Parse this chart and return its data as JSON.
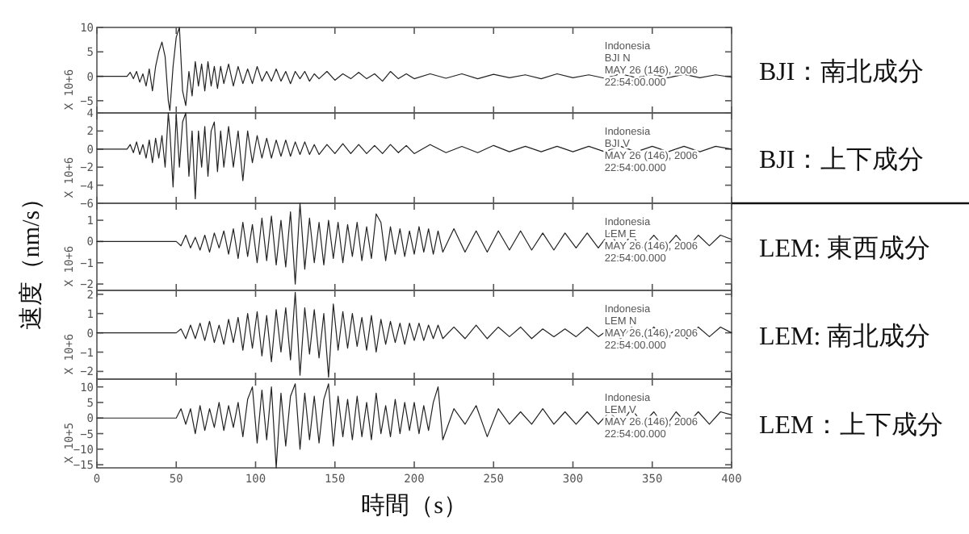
{
  "chart_data": [
    {
      "type": "line",
      "annotations": [
        "X 10+6",
        "Indonesia",
        "BJI   N",
        "MAY 26 (146), 2006",
        "22:54:00.000"
      ],
      "xlim": [
        0,
        400
      ],
      "xticks": [
        0,
        50,
        100,
        150,
        200,
        250,
        300,
        350,
        400
      ],
      "ylim": [
        -7.5,
        10
      ],
      "yticks": [
        -5,
        0,
        5,
        10
      ],
      "tick_labels": "y",
      "grid": false,
      "series": [
        {
          "name": "BJI：南北成分",
          "color": "#222222",
          "x": [
            0,
            19,
            21,
            23,
            25,
            27,
            29,
            31,
            33,
            35,
            37,
            39,
            41,
            43,
            45,
            46,
            48,
            50,
            52,
            54,
            56,
            58,
            60,
            62,
            64,
            66,
            68,
            70,
            72,
            74,
            76,
            78,
            80,
            83,
            86,
            89,
            92,
            95,
            98,
            101,
            104,
            107,
            110,
            113,
            116,
            119,
            122,
            125,
            128,
            131,
            134,
            137,
            140,
            145,
            150,
            155,
            160,
            165,
            170,
            175,
            180,
            185,
            190,
            195,
            200,
            210,
            220,
            230,
            240,
            250,
            260,
            270,
            280,
            290,
            300,
            310,
            320,
            330,
            340,
            350,
            360,
            370,
            380,
            390,
            400
          ],
          "values": [
            0,
            0,
            0.8,
            -0.5,
            1,
            -1.2,
            0.5,
            -2,
            1.5,
            -3,
            2,
            5,
            7,
            4,
            -5,
            -7,
            2,
            8,
            10,
            -3,
            -6,
            1,
            -4,
            3,
            -2,
            2.5,
            -3,
            3,
            -2,
            2,
            -2.5,
            2,
            -1.5,
            2.5,
            -2,
            2,
            -1.5,
            1.5,
            -1.5,
            2,
            -1,
            1,
            -1,
            1.5,
            -1,
            1,
            -1.5,
            1,
            -0.5,
            1,
            -1,
            0.5,
            -0.5,
            1,
            -0.8,
            0.5,
            -0.5,
            0.8,
            -0.5,
            0.5,
            -1,
            1,
            -0.5,
            0.5,
            -0.5,
            0.5,
            -0.4,
            0.5,
            -0.5,
            0.4,
            -0.3,
            0.3,
            -0.5,
            0.5,
            -0.3,
            0.3,
            -0.4,
            0.5,
            -0.3,
            0.4,
            -0.3,
            0.4,
            -0.3,
            0.3,
            -0.2
          ]
        }
      ]
    },
    {
      "type": "line",
      "annotations": [
        "X 10+6",
        "Indonesia",
        "BJI   V",
        "MAY 26 (146), 2006",
        "22:54:00.000"
      ],
      "xlim": [
        0,
        400
      ],
      "xticks": [
        0,
        50,
        100,
        150,
        200,
        250,
        300,
        350,
        400
      ],
      "ylim": [
        -6,
        4
      ],
      "yticks": [
        -6,
        -4,
        -2,
        0,
        2,
        4
      ],
      "tick_labels": "y",
      "grid": false,
      "series": [
        {
          "name": "BJI：上下成分",
          "color": "#222222",
          "x": [
            0,
            19,
            21,
            23,
            25,
            27,
            29,
            31,
            33,
            35,
            37,
            39,
            41,
            43,
            45,
            46,
            48,
            50,
            52,
            54,
            56,
            58,
            60,
            62,
            64,
            66,
            68,
            70,
            72,
            74,
            76,
            78,
            80,
            83,
            86,
            89,
            92,
            95,
            98,
            101,
            104,
            107,
            110,
            113,
            116,
            119,
            122,
            125,
            128,
            131,
            134,
            137,
            140,
            145,
            150,
            155,
            160,
            165,
            170,
            175,
            180,
            185,
            190,
            195,
            200,
            210,
            220,
            230,
            240,
            250,
            260,
            270,
            280,
            290,
            300,
            310,
            320,
            330,
            340,
            350,
            360,
            370,
            380,
            390,
            400
          ],
          "values": [
            0,
            0,
            0.5,
            -0.4,
            0.8,
            -0.6,
            0.5,
            -1,
            1,
            -1.5,
            1.2,
            -1,
            1.5,
            -2,
            4,
            2,
            -4.2,
            3.8,
            -2,
            3,
            4,
            -3,
            2,
            -5.5,
            2,
            -2,
            2.5,
            -3,
            2,
            3,
            -2.5,
            2,
            -2,
            2.5,
            -2,
            2,
            -3.5,
            2,
            -1.5,
            1.5,
            -1,
            1.2,
            -1,
            1,
            -0.8,
            1,
            -0.8,
            0.8,
            -0.6,
            0.8,
            -0.6,
            0.5,
            -0.6,
            0.5,
            -0.5,
            0.6,
            -0.5,
            0.5,
            -0.5,
            0.4,
            -0.5,
            0.5,
            -0.4,
            0.4,
            -0.5,
            0.5,
            -0.4,
            0.3,
            -0.4,
            0.4,
            -0.3,
            0.3,
            -0.3,
            0.3,
            -0.3,
            0.3,
            -0.3,
            0.3,
            -0.3,
            0.3,
            -0.3,
            0.3,
            -0.3,
            0.3,
            0
          ]
        }
      ]
    },
    {
      "type": "line",
      "ylabel": "速度（nm/s）",
      "annotations": [
        "X 10+6",
        "Indonesia",
        "LEM   E",
        "MAY 26 (146), 2006",
        "22:54:00.000"
      ],
      "xlim": [
        0,
        400
      ],
      "xticks": [
        0,
        50,
        100,
        150,
        200,
        250,
        300,
        350,
        400
      ],
      "ylim": [
        -2.3,
        1.8
      ],
      "yticks": [
        -2,
        -1,
        0,
        1
      ],
      "tick_labels": "y",
      "grid": false,
      "series": [
        {
          "name": "LEM: 東西成分",
          "color": "#222222",
          "x": [
            0,
            50,
            53,
            56,
            59,
            62,
            65,
            68,
            71,
            74,
            77,
            80,
            83,
            86,
            89,
            92,
            95,
            98,
            101,
            104,
            107,
            110,
            113,
            116,
            119,
            122,
            125,
            128,
            131,
            134,
            137,
            140,
            143,
            146,
            149,
            152,
            155,
            158,
            161,
            164,
            167,
            170,
            173,
            176,
            179,
            182,
            185,
            188,
            191,
            194,
            197,
            200,
            203,
            206,
            209,
            212,
            215,
            218,
            225,
            232,
            239,
            246,
            253,
            260,
            267,
            274,
            281,
            288,
            295,
            302,
            309,
            316,
            323,
            330,
            337,
            344,
            351,
            358,
            365,
            372,
            379,
            386,
            393,
            400
          ],
          "values": [
            0,
            0,
            -0.2,
            0.3,
            -0.3,
            0.2,
            -0.4,
            0.3,
            -0.5,
            0.4,
            -0.3,
            0.5,
            -0.6,
            0.6,
            -0.8,
            0.9,
            -0.7,
            0.8,
            -1,
            1.1,
            -0.9,
            1.2,
            -1.1,
            1,
            -1.2,
            1.4,
            -2,
            1.8,
            -1.3,
            1.1,
            -1,
            0.9,
            -1.1,
            1,
            -0.8,
            0.9,
            -1,
            0.8,
            -0.7,
            0.9,
            -0.9,
            0.7,
            -0.8,
            1.3,
            0.9,
            -0.9,
            0.7,
            -0.6,
            0.6,
            -0.7,
            0.5,
            -0.6,
            0.7,
            -0.5,
            0.6,
            -0.6,
            0.5,
            -0.5,
            0.6,
            -0.5,
            0.5,
            -0.5,
            0.5,
            -0.4,
            0.5,
            -0.4,
            0.4,
            -0.4,
            0.4,
            -0.3,
            0.4,
            -0.3,
            0.4,
            -0.3,
            0.3,
            -0.3,
            0.3,
            -0.3,
            0.3,
            -0.3,
            0.3,
            -0.2,
            0.3,
            0.1
          ]
        }
      ]
    },
    {
      "type": "line",
      "annotations": [
        "X 10+6",
        "Indonesia",
        "LEM   N",
        "MAY 26 (146), 2006",
        "22:54:00.000"
      ],
      "xlim": [
        0,
        400
      ],
      "xticks": [
        0,
        50,
        100,
        150,
        200,
        250,
        300,
        350,
        400
      ],
      "ylim": [
        -2.4,
        2.2
      ],
      "yticks": [
        -2,
        -1,
        0,
        1,
        2
      ],
      "tick_labels": "y",
      "grid": false,
      "series": [
        {
          "name": "LEM: 南北成分",
          "color": "#222222",
          "x": [
            0,
            50,
            53,
            56,
            59,
            62,
            65,
            68,
            71,
            74,
            77,
            80,
            83,
            86,
            89,
            92,
            95,
            98,
            101,
            104,
            107,
            110,
            113,
            116,
            119,
            122,
            125,
            128,
            131,
            134,
            137,
            140,
            143,
            146,
            149,
            152,
            155,
            158,
            161,
            164,
            167,
            170,
            173,
            176,
            179,
            182,
            185,
            188,
            191,
            194,
            197,
            200,
            203,
            206,
            209,
            212,
            215,
            218,
            225,
            232,
            239,
            246,
            253,
            260,
            267,
            274,
            281,
            288,
            295,
            302,
            309,
            316,
            323,
            330,
            337,
            344,
            351,
            358,
            365,
            372,
            379,
            386,
            393,
            400
          ],
          "values": [
            0,
            0,
            0.2,
            -0.3,
            0.4,
            -0.3,
            0.5,
            -0.4,
            0.6,
            -0.5,
            0.4,
            -0.6,
            0.7,
            -0.5,
            0.8,
            -0.9,
            1,
            -0.8,
            1.1,
            -1.2,
            0.9,
            -1.5,
            1.2,
            -1,
            1.3,
            -1.4,
            2.1,
            -2.2,
            1.3,
            -1.1,
            1.2,
            -1.3,
            1,
            -2.3,
            1.5,
            -0.9,
            1.1,
            -0.8,
            1,
            -0.7,
            0.8,
            -0.9,
            0.9,
            -1,
            0.7,
            -0.6,
            0.6,
            -0.5,
            0.5,
            -0.6,
            0.5,
            -0.4,
            0.5,
            -0.4,
            0.4,
            -0.3,
            0.4,
            -0.3,
            0.3,
            -0.3,
            0.4,
            -0.3,
            0.3,
            -0.2,
            0.3,
            -0.3,
            0.2,
            -0.2,
            0.2,
            -0.2,
            0.3,
            -0.2,
            0.2,
            -0.3,
            0.3,
            -0.2,
            0.3,
            -0.3,
            0.2,
            -0.3,
            0.3,
            -0.2,
            0.3,
            0
          ]
        }
      ]
    },
    {
      "type": "line",
      "xlabel": "時間（s）",
      "annotations": [
        "X 10+5",
        "Indonesia",
        "LEM   V",
        "MAY 26 (146), 2006",
        "22:54:00.000"
      ],
      "xlim": [
        0,
        400
      ],
      "xticks": [
        0,
        50,
        100,
        150,
        200,
        250,
        300,
        350,
        400
      ],
      "ylim": [
        -16,
        12.5
      ],
      "yticks": [
        -15,
        -10,
        -5,
        0,
        5,
        10
      ],
      "grid": false,
      "series": [
        {
          "name": "LEM：上下成分",
          "color": "#222222",
          "x": [
            0,
            50,
            53,
            56,
            59,
            62,
            65,
            68,
            71,
            74,
            77,
            80,
            83,
            86,
            89,
            92,
            95,
            98,
            101,
            104,
            107,
            110,
            113,
            116,
            119,
            122,
            125,
            128,
            131,
            134,
            137,
            140,
            143,
            146,
            149,
            152,
            155,
            158,
            161,
            164,
            167,
            170,
            173,
            176,
            179,
            182,
            185,
            188,
            191,
            194,
            197,
            200,
            203,
            206,
            209,
            212,
            215,
            218,
            225,
            232,
            239,
            246,
            253,
            260,
            267,
            274,
            281,
            288,
            295,
            302,
            309,
            316,
            323,
            330,
            337,
            344,
            351,
            358,
            365,
            372,
            379,
            386,
            393,
            400
          ],
          "values": [
            0,
            0,
            3,
            -2,
            3,
            -5,
            4,
            -4,
            3,
            -3,
            5,
            -4,
            4,
            -3,
            5,
            -6,
            6,
            10,
            -8,
            9,
            -7,
            10,
            -16,
            8,
            -9,
            7,
            11,
            -10,
            8,
            -7,
            7,
            -8,
            6,
            11,
            -9,
            7,
            -6,
            6,
            -7,
            7,
            -6,
            5,
            -7,
            8,
            -5,
            4,
            -6,
            6,
            -5,
            5,
            -4,
            5,
            -5,
            4,
            -4,
            5,
            10,
            -7,
            3,
            -2,
            4,
            -6,
            3,
            -2,
            2,
            -2,
            3,
            -2,
            2,
            -2,
            2,
            -2,
            2,
            -2,
            3,
            -2,
            2,
            -3,
            2,
            -2,
            2,
            -2,
            2,
            1
          ]
        }
      ]
    }
  ]
}
